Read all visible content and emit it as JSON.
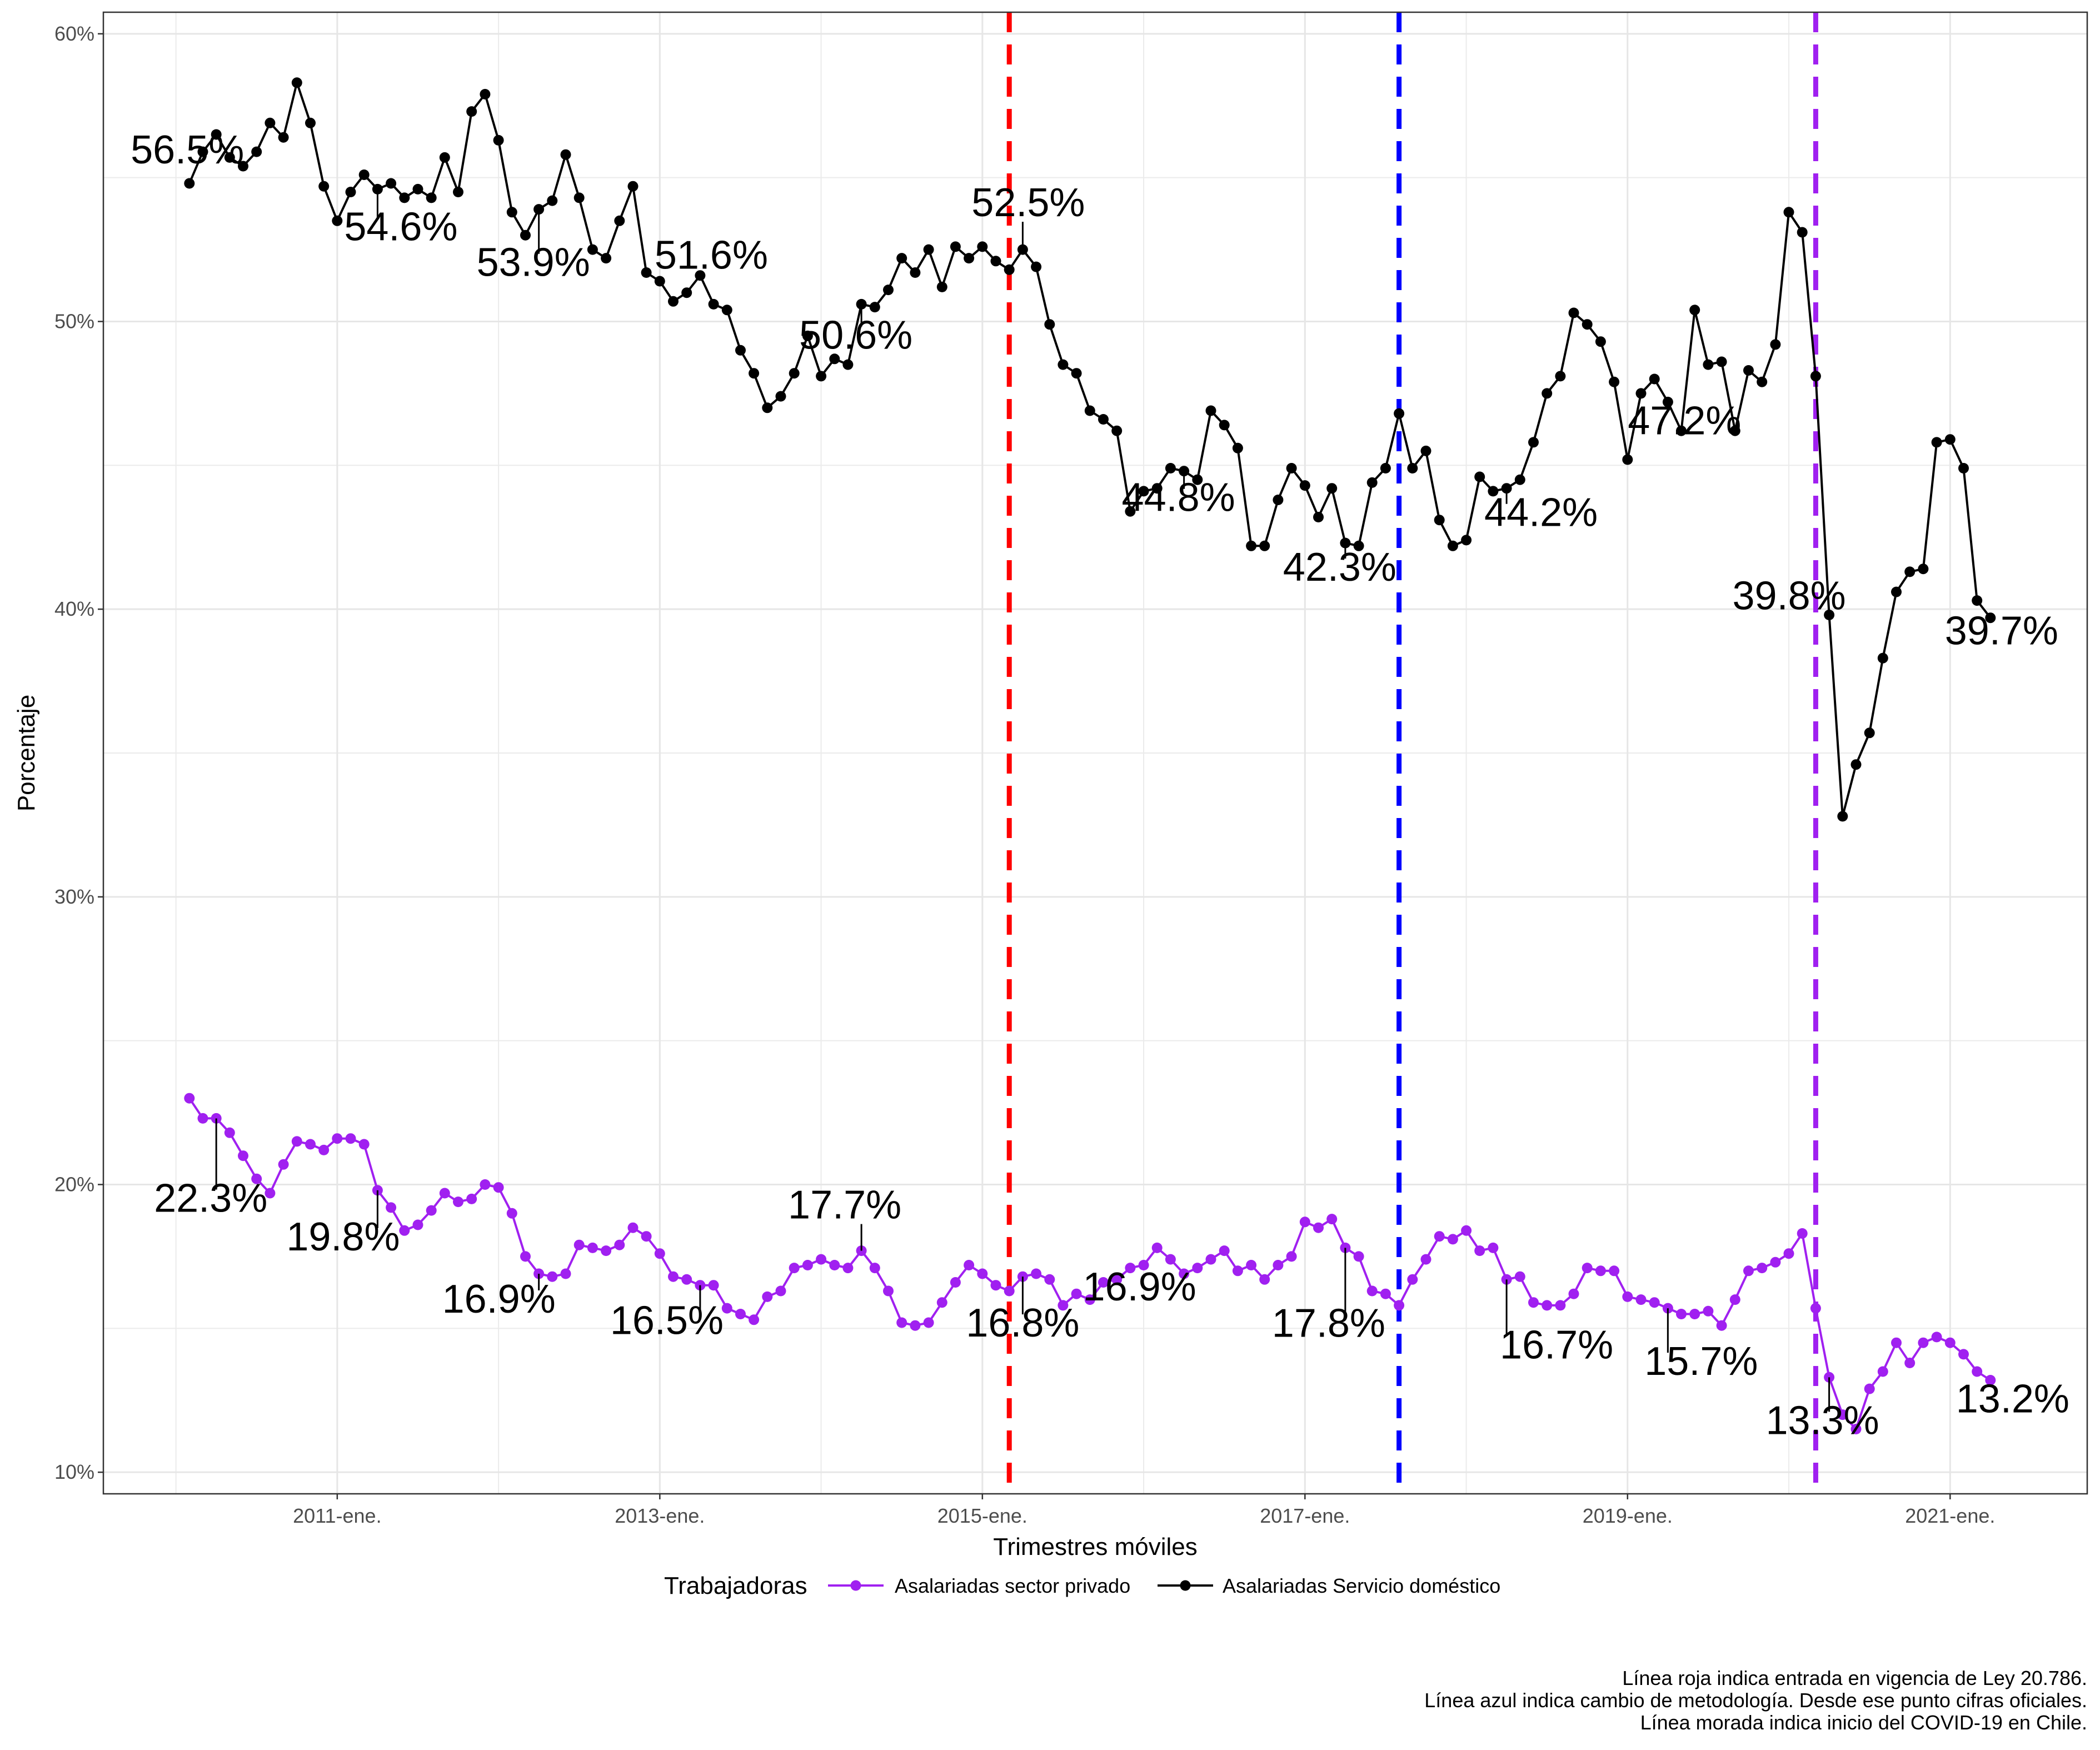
{
  "chart_data": {
    "type": "line",
    "title": "",
    "xlabel": "Trimestres móviles",
    "ylabel": "Porcentaje",
    "ylim": [
      9.25,
      60.75
    ],
    "y_ticks": [
      {
        "value": 10,
        "label": "10%"
      },
      {
        "value": 20,
        "label": "20%"
      },
      {
        "value": 30,
        "label": "30%"
      },
      {
        "value": 40,
        "label": "40%"
      },
      {
        "value": 50,
        "label": "50%"
      },
      {
        "value": 60,
        "label": "60%"
      }
    ],
    "y_minor_gridlines": [
      15,
      25,
      35,
      45,
      55
    ],
    "x_ticks": [
      {
        "value": 2011,
        "label": "2011-ene."
      },
      {
        "value": 2013,
        "label": "2013-ene."
      },
      {
        "value": 2015,
        "label": "2015-ene."
      },
      {
        "value": 2017,
        "label": "2017-ene."
      },
      {
        "value": 2019,
        "label": "2019-ene."
      },
      {
        "value": 2021,
        "label": "2021-ene."
      }
    ],
    "x_minor_gridlines": [
      2010,
      2012,
      2014,
      2016,
      2018,
      2020
    ],
    "grid": true,
    "legend": {
      "position": "bottom",
      "title": "Trabajadoras"
    },
    "series": [
      {
        "name": "Asalariadas sector privado",
        "color": "#a020f0",
        "values": [
          23.0,
          22.3,
          22.3,
          21.8,
          21.0,
          20.2,
          19.7,
          20.7,
          21.5,
          21.4,
          21.2,
          21.6,
          21.6,
          21.4,
          19.8,
          19.2,
          18.4,
          18.6,
          19.1,
          19.7,
          19.4,
          19.5,
          20.0,
          19.9,
          19.0,
          17.5,
          16.9,
          16.8,
          16.9,
          17.9,
          17.8,
          17.7,
          17.9,
          18.5,
          18.2,
          17.6,
          16.8,
          16.7,
          16.5,
          16.5,
          15.7,
          15.5,
          15.3,
          16.1,
          16.3,
          17.1,
          17.2,
          17.4,
          17.2,
          17.1,
          17.7,
          17.1,
          16.3,
          15.2,
          15.1,
          15.2,
          15.9,
          16.6,
          17.2,
          16.9,
          16.5,
          16.3,
          16.8,
          16.9,
          16.7,
          15.8,
          16.2,
          16.0,
          16.6,
          16.7,
          17.1,
          17.2,
          17.8,
          17.4,
          16.9,
          17.1,
          17.4,
          17.7,
          17.0,
          17.2,
          16.7,
          17.2,
          17.5,
          18.7,
          18.5,
          18.8,
          17.8,
          17.5,
          16.3,
          16.2,
          15.8,
          16.7,
          17.4,
          18.2,
          18.1,
          18.4,
          17.7,
          17.8,
          16.7,
          16.8,
          15.9,
          15.8,
          15.8,
          16.2,
          17.1,
          17.0,
          17.0,
          16.1,
          16.0,
          15.9,
          15.7,
          15.5,
          15.5,
          15.6,
          15.1,
          16.0,
          17.0,
          17.1,
          17.3,
          17.6,
          18.3,
          15.7,
          13.3,
          12.0,
          11.5,
          12.9,
          13.5,
          14.5,
          13.8,
          14.5,
          14.7,
          14.5,
          14.1,
          13.5,
          13.2
        ]
      },
      {
        "name": "Asalariadas Servicio doméstico",
        "color": "#000000",
        "values": [
          54.8,
          55.9,
          56.5,
          55.7,
          55.4,
          55.9,
          56.9,
          56.4,
          58.3,
          56.9,
          54.7,
          53.5,
          54.5,
          55.1,
          54.6,
          54.8,
          54.3,
          54.6,
          54.3,
          55.7,
          54.5,
          57.3,
          57.9,
          56.3,
          53.8,
          53.0,
          53.9,
          54.2,
          55.8,
          54.3,
          52.5,
          52.2,
          53.5,
          54.7,
          51.7,
          51.4,
          50.7,
          51.0,
          51.6,
          50.6,
          50.4,
          49.0,
          48.2,
          47.0,
          47.4,
          48.2,
          49.5,
          48.1,
          48.7,
          48.5,
          50.6,
          50.5,
          51.1,
          52.2,
          51.7,
          52.5,
          51.2,
          52.6,
          52.2,
          52.6,
          52.1,
          51.8,
          52.5,
          51.9,
          49.9,
          48.5,
          48.2,
          46.9,
          46.6,
          46.2,
          43.4,
          44.1,
          44.2,
          44.9,
          44.8,
          44.5,
          46.9,
          46.4,
          45.6,
          42.2,
          42.2,
          43.8,
          44.9,
          44.3,
          43.2,
          44.2,
          42.3,
          42.2,
          44.4,
          44.9,
          46.8,
          44.9,
          45.5,
          43.1,
          42.2,
          42.4,
          44.6,
          44.1,
          44.2,
          44.5,
          45.8,
          47.5,
          48.1,
          50.3,
          49.9,
          49.3,
          47.9,
          45.2,
          47.5,
          48.0,
          47.2,
          46.2,
          50.4,
          48.5,
          48.6,
          46.2,
          48.3,
          47.9,
          49.2,
          53.8,
          53.1,
          48.1,
          39.8,
          32.8,
          34.6,
          35.7,
          38.3,
          40.6,
          41.3,
          41.4,
          45.8,
          45.9,
          44.9,
          40.3,
          39.7
        ]
      }
    ],
    "x_start": 2010.0833,
    "x_step": 0.0833333,
    "vlines": [
      {
        "x": 2015.1667,
        "color": "#ff0000"
      },
      {
        "x": 2017.5833,
        "color": "#0000ff"
      },
      {
        "x": 2020.1667,
        "color": "#a020f0"
      }
    ],
    "annotations": [
      {
        "label": "56.5%",
        "series": 1,
        "index": 2
      },
      {
        "label": "54.6%",
        "series": 1,
        "index": 14
      },
      {
        "label": "53.9%",
        "series": 1,
        "index": 26
      },
      {
        "label": "51.6%",
        "series": 1,
        "index": 38
      },
      {
        "label": "50.6%",
        "series": 1,
        "index": 50
      },
      {
        "label": "52.5%",
        "series": 1,
        "index": 62
      },
      {
        "label": "44.8%",
        "series": 1,
        "index": 74
      },
      {
        "label": "42.3%",
        "series": 1,
        "index": 86
      },
      {
        "label": "44.2%",
        "series": 1,
        "index": 98
      },
      {
        "label": "47.2%",
        "series": 1,
        "index": 110
      },
      {
        "label": "39.8%",
        "series": 1,
        "index": 122
      },
      {
        "label": "39.7%",
        "series": 1,
        "index": 134
      },
      {
        "label": "22.3%",
        "series": 0,
        "index": 2
      },
      {
        "label": "19.8%",
        "series": 0,
        "index": 14
      },
      {
        "label": "16.9%",
        "series": 0,
        "index": 26
      },
      {
        "label": "16.5%",
        "series": 0,
        "index": 38
      },
      {
        "label": "17.7%",
        "series": 0,
        "index": 50
      },
      {
        "label": "16.8%",
        "series": 0,
        "index": 62
      },
      {
        "label": "16.9%",
        "series": 0,
        "index": 74
      },
      {
        "label": "17.8%",
        "series": 0,
        "index": 86
      },
      {
        "label": "16.7%",
        "series": 0,
        "index": 98
      },
      {
        "label": "15.7%",
        "series": 0,
        "index": 110
      },
      {
        "label": "13.3%",
        "series": 0,
        "index": 122
      },
      {
        "label": "13.2%",
        "series": 0,
        "index": 134
      }
    ],
    "caption": [
      "Línea roja indica entrada en vigencia de Ley 20.786.",
      "Línea azul indica cambio de metodología. Desde ese punto cifras oficiales.",
      "Línea morada indica inicio del COVID-19 en Chile."
    ]
  }
}
